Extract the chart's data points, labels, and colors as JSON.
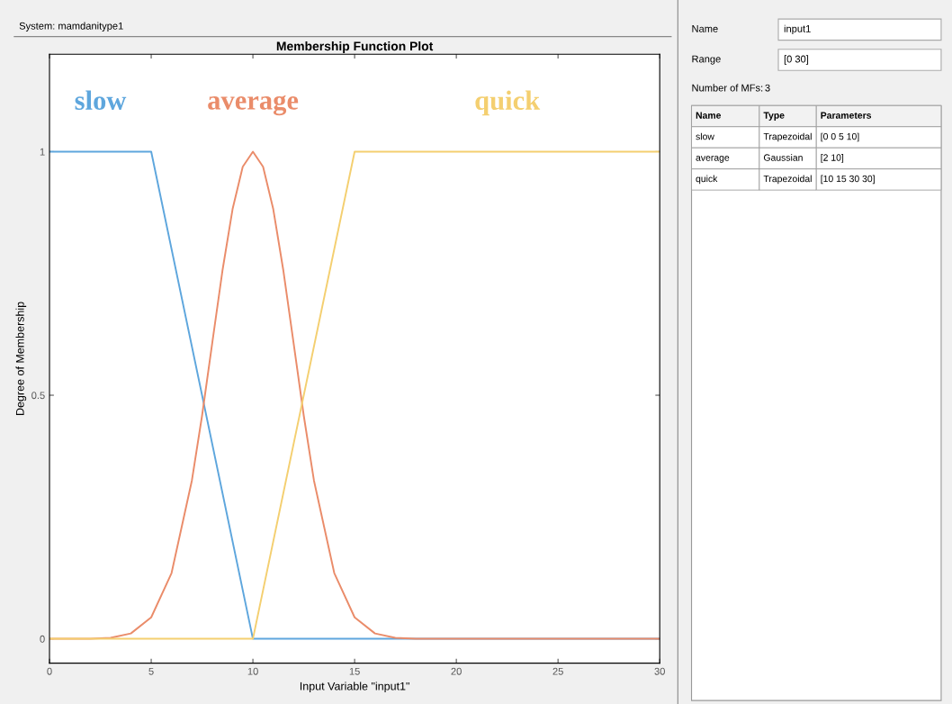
{
  "chart_data": [
    {
      "type": "line",
      "title": "Membership Function Plot",
      "xlabel": "Input Variable \"input1\"",
      "ylabel": "Degree of Membership",
      "annotations": [
        "System: mamdanitype1"
      ],
      "xlim": [
        0,
        30
      ],
      "xticks": [
        0,
        5,
        10,
        15,
        20,
        25,
        30
      ],
      "ylim": [
        -0.05,
        1.2
      ],
      "yticks": [
        0,
        0.5,
        1
      ],
      "grid": false,
      "legend": false,
      "marker": "none",
      "line_style": "solid",
      "series": [
        {
          "name": "slow",
          "color": "#5ea6dd",
          "x": [
            0,
            5,
            10,
            30
          ],
          "values": [
            1,
            1,
            0,
            0
          ]
        },
        {
          "name": "average",
          "color": "#ea8c6a",
          "x": [
            0,
            2,
            3,
            4,
            5,
            6,
            7,
            7.5,
            8,
            8.5,
            9,
            9.5,
            10,
            10.5,
            11,
            11.5,
            12,
            12.5,
            13,
            14,
            15,
            16,
            17,
            18,
            30
          ],
          "values": [
            0,
            0,
            0.002,
            0.011,
            0.044,
            0.135,
            0.325,
            0.458,
            0.607,
            0.755,
            0.882,
            0.969,
            1,
            0.969,
            0.882,
            0.755,
            0.607,
            0.458,
            0.325,
            0.135,
            0.044,
            0.011,
            0.002,
            0,
            0
          ]
        },
        {
          "name": "quick",
          "color": "#f4cf70",
          "x": [
            0,
            10,
            15,
            30
          ],
          "values": [
            0,
            0,
            1,
            1
          ]
        }
      ]
    },
    {
      "type": "other",
      "annotations": [
        "Name",
        "input1",
        "Range",
        "[0 30]",
        "Number of MFs:",
        "3",
        "Name",
        "Type",
        "Parameters",
        "slow",
        "Trapezoidal",
        "[0 0 5 10]",
        "average",
        "Gaussian",
        "[2 10]",
        "quick",
        "Trapezoidal",
        "[10 15 30 30]"
      ]
    }
  ]
}
